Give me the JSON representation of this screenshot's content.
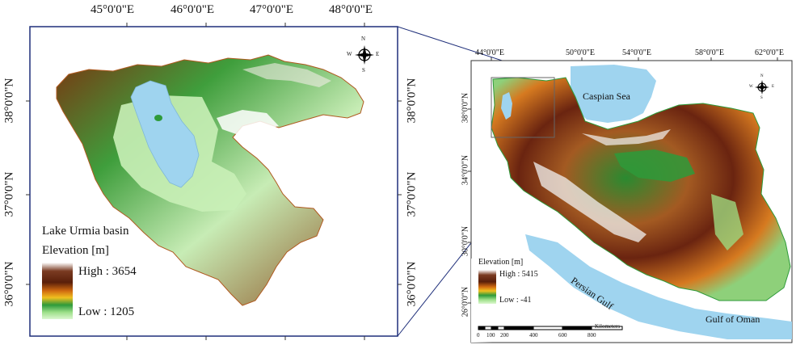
{
  "left_map": {
    "lon_labels": [
      "45°0'0\"E",
      "46°0'0\"E",
      "47°0'0\"E",
      "48°0'0\"E"
    ],
    "lat_labels": [
      "38°0'0\"N",
      "37°0'0\"N",
      "36°0'0\"N"
    ],
    "legend_title": "Lake Urmia basin",
    "legend_subtitle": "Elevation [m]",
    "legend_high": "High : 3654",
    "legend_low": "Low : 1205",
    "compass": {
      "n": "N",
      "s": "S",
      "e": "E",
      "w": "W"
    }
  },
  "right_map": {
    "lon_labels": [
      "44°0'0\"E",
      "50°0'0\"E",
      "54°0'0\"E",
      "58°0'0\"E",
      "62°0'0\"E"
    ],
    "lat_labels": [
      "38°0'0\"N",
      "34°0'0\"N",
      "30°0'0\"N",
      "26°0'0\"N"
    ],
    "caspian_label": "Caspian Sea",
    "persian_gulf_label": "Persian Gulf",
    "gulf_oman_label": "Gulf of Oman",
    "legend_title": "Elevation [m]",
    "legend_high": "High : 5415",
    "legend_low": "Low : -41",
    "scale_ticks": [
      "0",
      "100",
      "200",
      "400",
      "600",
      "800"
    ],
    "scale_unit": "Kilometers",
    "compass": {
      "n": "N",
      "s": "S",
      "e": "E",
      "w": "W"
    }
  },
  "colors": {
    "frame": "#1f2f7a",
    "water": "#9fd4ef",
    "low": "#c8efc0",
    "mid_green": "#2e9a3a",
    "orange": "#e07a12",
    "brown": "#6b2a12",
    "snow": "#ffffff"
  }
}
